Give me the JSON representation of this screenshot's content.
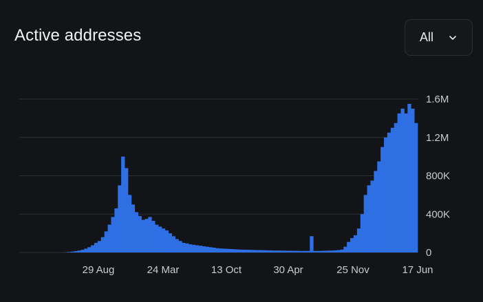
{
  "header": {
    "title": "Active addresses",
    "range_selected": "All",
    "range_icon": "chevron-down-icon"
  },
  "colors": {
    "background": "#121418",
    "bars": "#2f6fe4",
    "grid": "#2e3137",
    "axis_text": "#c9cbcf"
  },
  "chart_data": {
    "type": "bar",
    "title": "Active addresses",
    "xlabel": "",
    "ylabel": "",
    "ylim": [
      0,
      1600000
    ],
    "y_ticks": [
      {
        "value": 1600000,
        "label": "1.6M"
      },
      {
        "value": 1200000,
        "label": "1.2M"
      },
      {
        "value": 800000,
        "label": "800K"
      },
      {
        "value": 400000,
        "label": "400K"
      },
      {
        "value": 0,
        "label": "0"
      }
    ],
    "x_ticks": [
      "29 Aug",
      "24 Mar",
      "13 Oct",
      "30 Apr",
      "25 Nov",
      "17 Jun"
    ],
    "grid": true,
    "y_axis_position": "right",
    "series": [
      {
        "values": [
          0,
          2000,
          5000,
          9000,
          14000,
          20000,
          28000,
          40000,
          55000,
          75000,
          100000,
          120000,
          160000,
          220000,
          290000,
          370000,
          460000,
          700000,
          1000000,
          880000,
          600000,
          500000,
          420000,
          380000,
          340000,
          350000,
          370000,
          330000,
          290000,
          270000,
          250000,
          230000,
          200000,
          170000,
          140000,
          120000,
          100000,
          95000,
          85000,
          80000,
          75000,
          70000,
          65000,
          60000,
          55000,
          50000,
          45000,
          42000,
          40000,
          38000,
          36000,
          34000,
          32000,
          30000,
          29000,
          28000,
          27000,
          26000,
          25000,
          24000,
          23000,
          22000,
          21000,
          20000,
          20000,
          19000,
          19000,
          18000,
          18000,
          17000,
          17000,
          16000,
          16000,
          16000,
          170000,
          16000,
          16000,
          17000,
          18000,
          19000,
          20000,
          22000,
          25000,
          30000,
          60000,
          110000,
          150000,
          180000,
          250000,
          400000,
          600000,
          700000,
          750000,
          850000,
          950000,
          1100000,
          1200000,
          1250000,
          1300000,
          1350000,
          1450000,
          1500000,
          1450000,
          1550000,
          1500000,
          1350000
        ]
      }
    ]
  }
}
